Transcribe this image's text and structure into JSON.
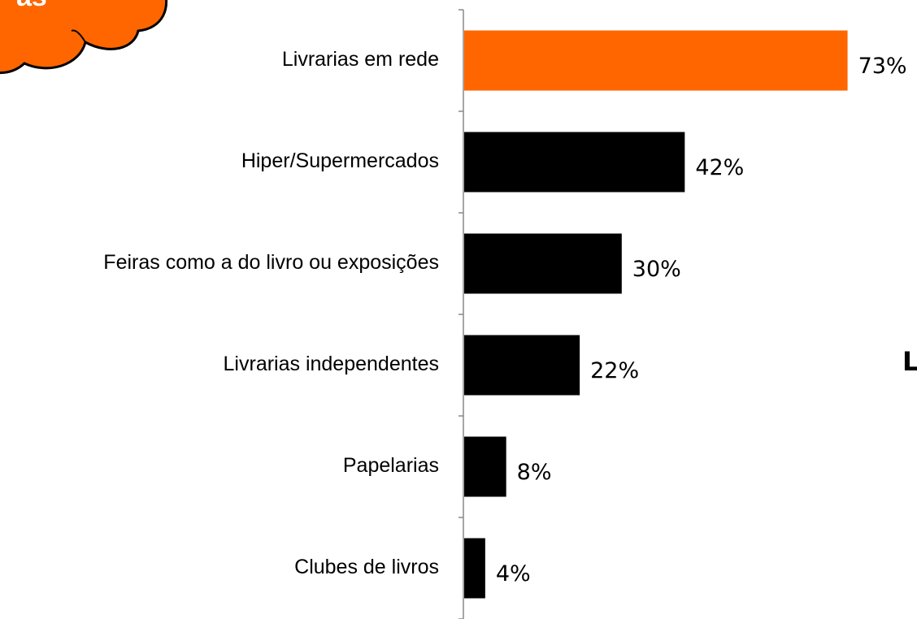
{
  "chart_data": {
    "type": "bar",
    "orientation": "horizontal",
    "categories": [
      "Livrarias em rede",
      "Hiper/Supermercados",
      "Feiras como a do livro ou exposições",
      "Livrarias independentes",
      "Papelarias",
      "Clubes de livros"
    ],
    "values": [
      73,
      42,
      30,
      22,
      8,
      4
    ],
    "value_labels": [
      "73%",
      "42%",
      "30%",
      "22%",
      "8%",
      "4%"
    ],
    "colors": [
      "#ff6600",
      "#000000",
      "#000000",
      "#000000",
      "#000000",
      "#000000"
    ],
    "cloud_text": "as",
    "right_text": "L"
  }
}
